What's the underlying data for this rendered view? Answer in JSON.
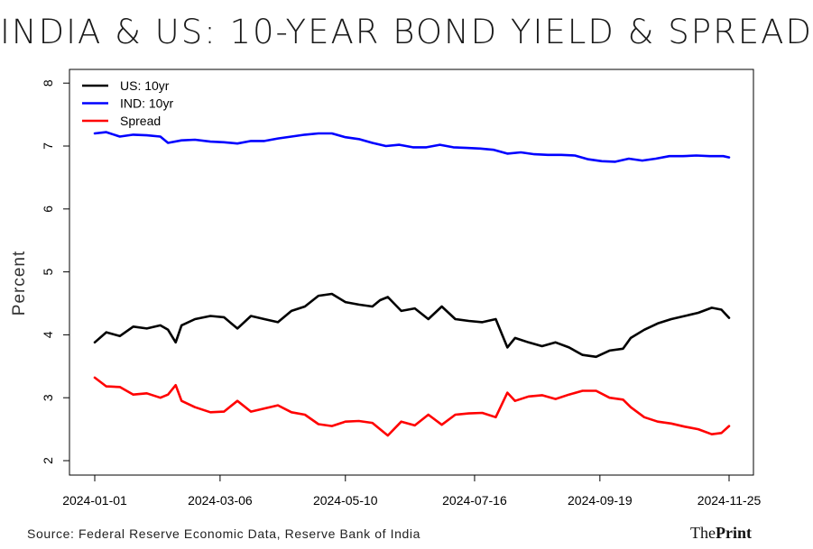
{
  "chart_data": {
    "type": "line",
    "title": "INDIA & US: 10-YEAR BOND YIELD & SPREAD",
    "xlabel": "",
    "ylabel": "Percent",
    "ylim": [
      1.75,
      8.25
    ],
    "yticks": [
      "2",
      "3",
      "4",
      "5",
      "6",
      "7",
      "8"
    ],
    "xticks": [
      "2024-01-01",
      "2024-03-06",
      "2024-05-10",
      "2024-07-16",
      "2024-09-19",
      "2024-11-25"
    ],
    "x_range": [
      "2024-01-01",
      "2024-11-25"
    ],
    "legend_position": "top-left",
    "series": [
      {
        "name": "US: 10yr",
        "color": "#000000",
        "points": [
          [
            "2024-01-01",
            3.88
          ],
          [
            "2024-01-07",
            4.04
          ],
          [
            "2024-01-14",
            3.98
          ],
          [
            "2024-01-21",
            4.13
          ],
          [
            "2024-01-28",
            4.1
          ],
          [
            "2024-02-04",
            4.15
          ],
          [
            "2024-02-08",
            4.08
          ],
          [
            "2024-02-12",
            3.88
          ],
          [
            "2024-02-15",
            4.15
          ],
          [
            "2024-02-22",
            4.25
          ],
          [
            "2024-03-01",
            4.3
          ],
          [
            "2024-03-08",
            4.28
          ],
          [
            "2024-03-15",
            4.1
          ],
          [
            "2024-03-22",
            4.3
          ],
          [
            "2024-03-29",
            4.25
          ],
          [
            "2024-04-05",
            4.2
          ],
          [
            "2024-04-12",
            4.38
          ],
          [
            "2024-04-19",
            4.45
          ],
          [
            "2024-04-26",
            4.62
          ],
          [
            "2024-05-03",
            4.65
          ],
          [
            "2024-05-10",
            4.52
          ],
          [
            "2024-05-17",
            4.48
          ],
          [
            "2024-05-24",
            4.45
          ],
          [
            "2024-05-28",
            4.55
          ],
          [
            "2024-06-01",
            4.6
          ],
          [
            "2024-06-08",
            4.38
          ],
          [
            "2024-06-15",
            4.42
          ],
          [
            "2024-06-22",
            4.25
          ],
          [
            "2024-06-29",
            4.45
          ],
          [
            "2024-07-06",
            4.25
          ],
          [
            "2024-07-13",
            4.22
          ],
          [
            "2024-07-20",
            4.2
          ],
          [
            "2024-07-27",
            4.25
          ],
          [
            "2024-08-02",
            3.8
          ],
          [
            "2024-08-06",
            3.95
          ],
          [
            "2024-08-13",
            3.88
          ],
          [
            "2024-08-20",
            3.82
          ],
          [
            "2024-08-27",
            3.88
          ],
          [
            "2024-09-03",
            3.8
          ],
          [
            "2024-09-10",
            3.68
          ],
          [
            "2024-09-17",
            3.65
          ],
          [
            "2024-09-24",
            3.75
          ],
          [
            "2024-10-01",
            3.78
          ],
          [
            "2024-10-05",
            3.95
          ],
          [
            "2024-10-12",
            4.08
          ],
          [
            "2024-10-19",
            4.18
          ],
          [
            "2024-10-26",
            4.25
          ],
          [
            "2024-11-02",
            4.3
          ],
          [
            "2024-11-09",
            4.35
          ],
          [
            "2024-11-16",
            4.43
          ],
          [
            "2024-11-21",
            4.4
          ],
          [
            "2024-11-25",
            4.27
          ]
        ]
      },
      {
        "name": "IND: 10yr",
        "color": "#0000ff",
        "points": [
          [
            "2024-01-01",
            7.2
          ],
          [
            "2024-01-07",
            7.22
          ],
          [
            "2024-01-14",
            7.15
          ],
          [
            "2024-01-21",
            7.18
          ],
          [
            "2024-01-28",
            7.17
          ],
          [
            "2024-02-04",
            7.15
          ],
          [
            "2024-02-08",
            7.05
          ],
          [
            "2024-02-15",
            7.09
          ],
          [
            "2024-02-22",
            7.1
          ],
          [
            "2024-03-01",
            7.07
          ],
          [
            "2024-03-08",
            7.06
          ],
          [
            "2024-03-15",
            7.04
          ],
          [
            "2024-03-22",
            7.08
          ],
          [
            "2024-03-29",
            7.08
          ],
          [
            "2024-04-05",
            7.12
          ],
          [
            "2024-04-12",
            7.15
          ],
          [
            "2024-04-19",
            7.18
          ],
          [
            "2024-04-26",
            7.2
          ],
          [
            "2024-05-03",
            7.2
          ],
          [
            "2024-05-10",
            7.14
          ],
          [
            "2024-05-17",
            7.11
          ],
          [
            "2024-05-24",
            7.05
          ],
          [
            "2024-05-31",
            7.0
          ],
          [
            "2024-06-07",
            7.02
          ],
          [
            "2024-06-14",
            6.98
          ],
          [
            "2024-06-21",
            6.98
          ],
          [
            "2024-06-28",
            7.02
          ],
          [
            "2024-07-05",
            6.98
          ],
          [
            "2024-07-12",
            6.97
          ],
          [
            "2024-07-19",
            6.96
          ],
          [
            "2024-07-26",
            6.94
          ],
          [
            "2024-08-02",
            6.88
          ],
          [
            "2024-08-09",
            6.9
          ],
          [
            "2024-08-16",
            6.87
          ],
          [
            "2024-08-23",
            6.86
          ],
          [
            "2024-08-30",
            6.86
          ],
          [
            "2024-09-06",
            6.85
          ],
          [
            "2024-09-13",
            6.79
          ],
          [
            "2024-09-20",
            6.76
          ],
          [
            "2024-09-27",
            6.75
          ],
          [
            "2024-10-04",
            6.8
          ],
          [
            "2024-10-11",
            6.77
          ],
          [
            "2024-10-18",
            6.8
          ],
          [
            "2024-10-25",
            6.84
          ],
          [
            "2024-11-01",
            6.84
          ],
          [
            "2024-11-08",
            6.85
          ],
          [
            "2024-11-15",
            6.84
          ],
          [
            "2024-11-22",
            6.84
          ],
          [
            "2024-11-25",
            6.82
          ]
        ]
      },
      {
        "name": "Spread",
        "color": "#ff0000",
        "points": [
          [
            "2024-01-01",
            3.32
          ],
          [
            "2024-01-07",
            3.18
          ],
          [
            "2024-01-14",
            3.17
          ],
          [
            "2024-01-21",
            3.05
          ],
          [
            "2024-01-28",
            3.07
          ],
          [
            "2024-02-04",
            3.0
          ],
          [
            "2024-02-08",
            3.05
          ],
          [
            "2024-02-12",
            3.2
          ],
          [
            "2024-02-15",
            2.95
          ],
          [
            "2024-02-22",
            2.85
          ],
          [
            "2024-03-01",
            2.77
          ],
          [
            "2024-03-08",
            2.78
          ],
          [
            "2024-03-15",
            2.95
          ],
          [
            "2024-03-22",
            2.78
          ],
          [
            "2024-03-29",
            2.83
          ],
          [
            "2024-04-05",
            2.88
          ],
          [
            "2024-04-12",
            2.77
          ],
          [
            "2024-04-19",
            2.73
          ],
          [
            "2024-04-26",
            2.58
          ],
          [
            "2024-05-03",
            2.55
          ],
          [
            "2024-05-10",
            2.62
          ],
          [
            "2024-05-17",
            2.63
          ],
          [
            "2024-05-24",
            2.6
          ],
          [
            "2024-05-28",
            2.5
          ],
          [
            "2024-06-01",
            2.4
          ],
          [
            "2024-06-08",
            2.62
          ],
          [
            "2024-06-15",
            2.56
          ],
          [
            "2024-06-22",
            2.73
          ],
          [
            "2024-06-29",
            2.57
          ],
          [
            "2024-07-06",
            2.73
          ],
          [
            "2024-07-13",
            2.75
          ],
          [
            "2024-07-20",
            2.76
          ],
          [
            "2024-07-27",
            2.69
          ],
          [
            "2024-08-02",
            3.08
          ],
          [
            "2024-08-06",
            2.95
          ],
          [
            "2024-08-13",
            3.02
          ],
          [
            "2024-08-20",
            3.04
          ],
          [
            "2024-08-27",
            2.98
          ],
          [
            "2024-09-03",
            3.05
          ],
          [
            "2024-09-10",
            3.11
          ],
          [
            "2024-09-17",
            3.11
          ],
          [
            "2024-09-24",
            3.0
          ],
          [
            "2024-10-01",
            2.97
          ],
          [
            "2024-10-05",
            2.85
          ],
          [
            "2024-10-12",
            2.69
          ],
          [
            "2024-10-19",
            2.62
          ],
          [
            "2024-10-26",
            2.59
          ],
          [
            "2024-11-02",
            2.54
          ],
          [
            "2024-11-09",
            2.5
          ],
          [
            "2024-11-16",
            2.42
          ],
          [
            "2024-11-21",
            2.44
          ],
          [
            "2024-11-25",
            2.55
          ]
        ]
      }
    ]
  },
  "footer": {
    "source": "Source: Federal Reserve Economic Data, Reserve Bank of India",
    "brand_prefix": "The",
    "brand_name": "Print"
  }
}
